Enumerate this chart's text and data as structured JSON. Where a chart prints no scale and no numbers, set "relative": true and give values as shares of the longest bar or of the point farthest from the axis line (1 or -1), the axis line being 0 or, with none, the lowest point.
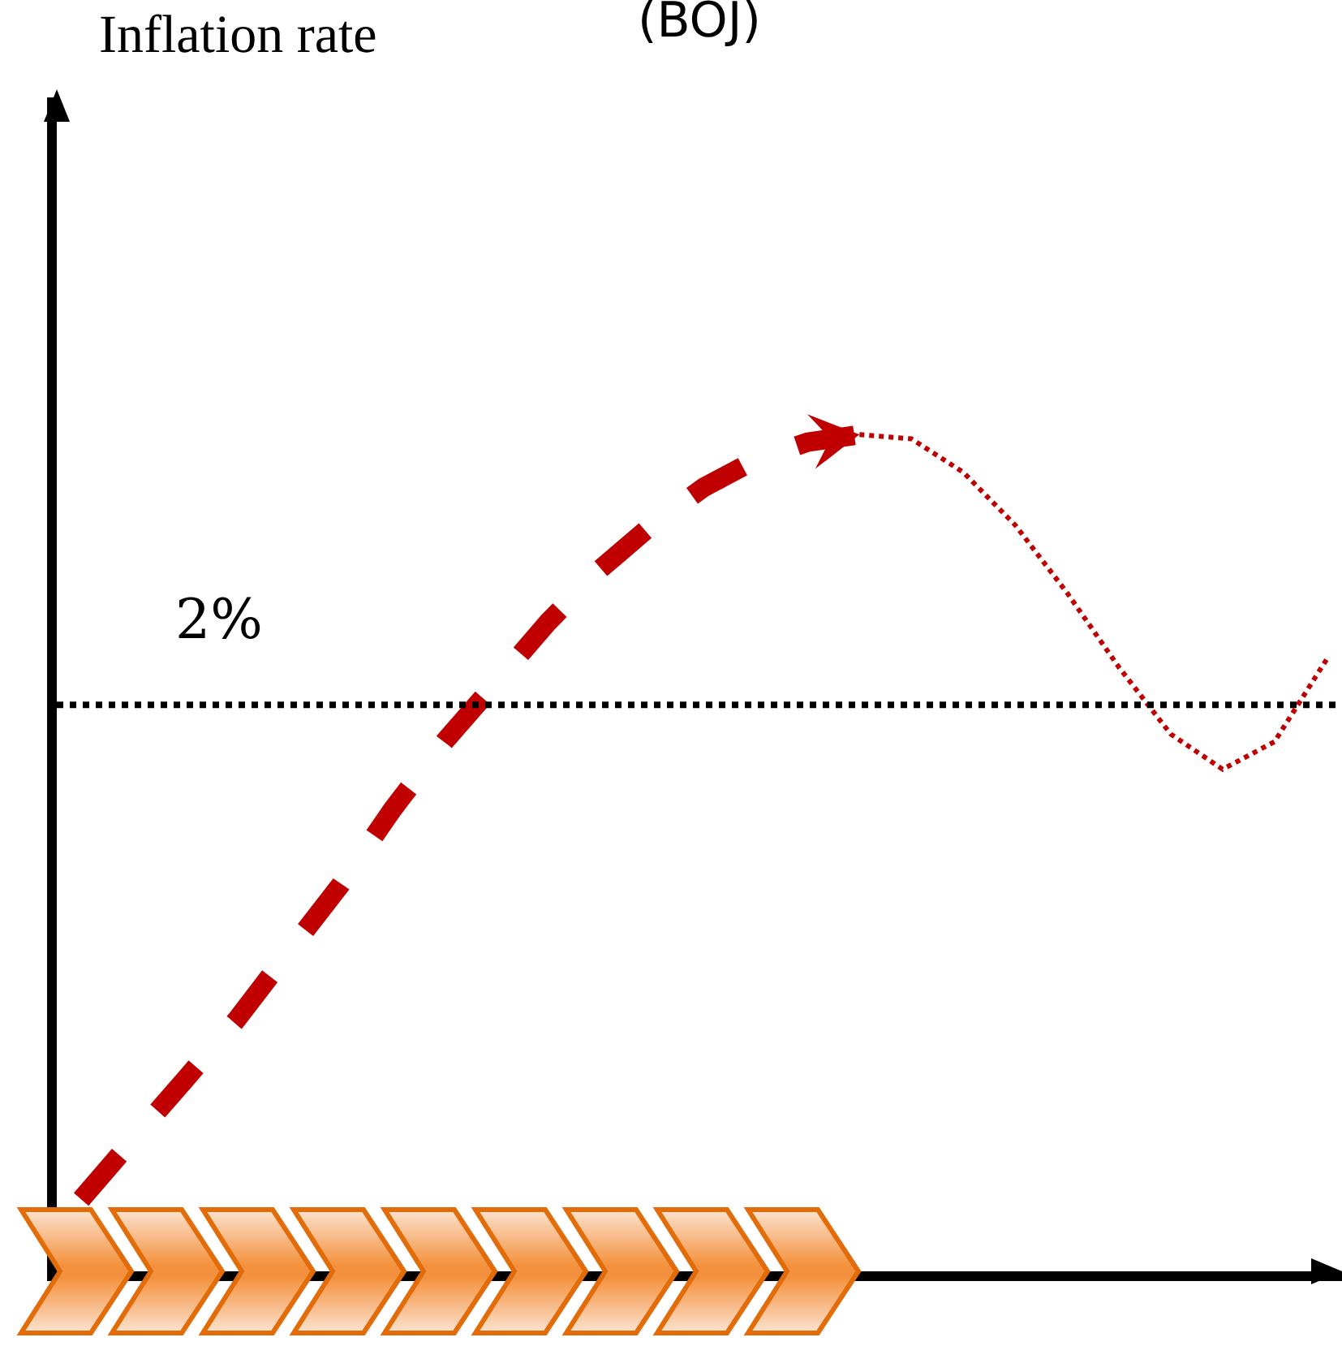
{
  "chart_data": {
    "type": "line",
    "title": "(BOJ)",
    "annotations": [
      "Inflation rate",
      "2%"
    ],
    "relative": true,
    "categories": [
      null,
      null,
      null,
      null,
      null,
      null,
      null,
      null,
      null,
      null,
      null,
      null,
      null,
      null,
      null,
      null,
      null,
      null,
      null,
      null,
      null,
      null,
      null,
      null,
      null
    ],
    "series": [
      {
        "color": "#c00000",
        "line_style": "dashed",
        "values": [
          0.086,
          0.158,
          0.229,
          0.301,
          0.382,
          0.462,
          0.552,
          0.633,
          0.704,
          0.776,
          0.839,
          0.892,
          0.937,
          0.97,
          0.991,
          1,
          null,
          null,
          null,
          null,
          null,
          null,
          null,
          null,
          null
        ]
      },
      {
        "color": "#c00000",
        "line_style": "dotted",
        "values": [
          null,
          null,
          null,
          null,
          null,
          null,
          null,
          null,
          null,
          null,
          null,
          null,
          null,
          null,
          null,
          1,
          0.995,
          0.955,
          0.892,
          0.811,
          0.722,
          0.642,
          0.6,
          0.633,
          0.731
        ]
      }
    ],
    "ref_lines": [
      {
        "axis": "y",
        "value": 0.677,
        "color": "#000000",
        "line_style": "dotted"
      }
    ]
  }
}
